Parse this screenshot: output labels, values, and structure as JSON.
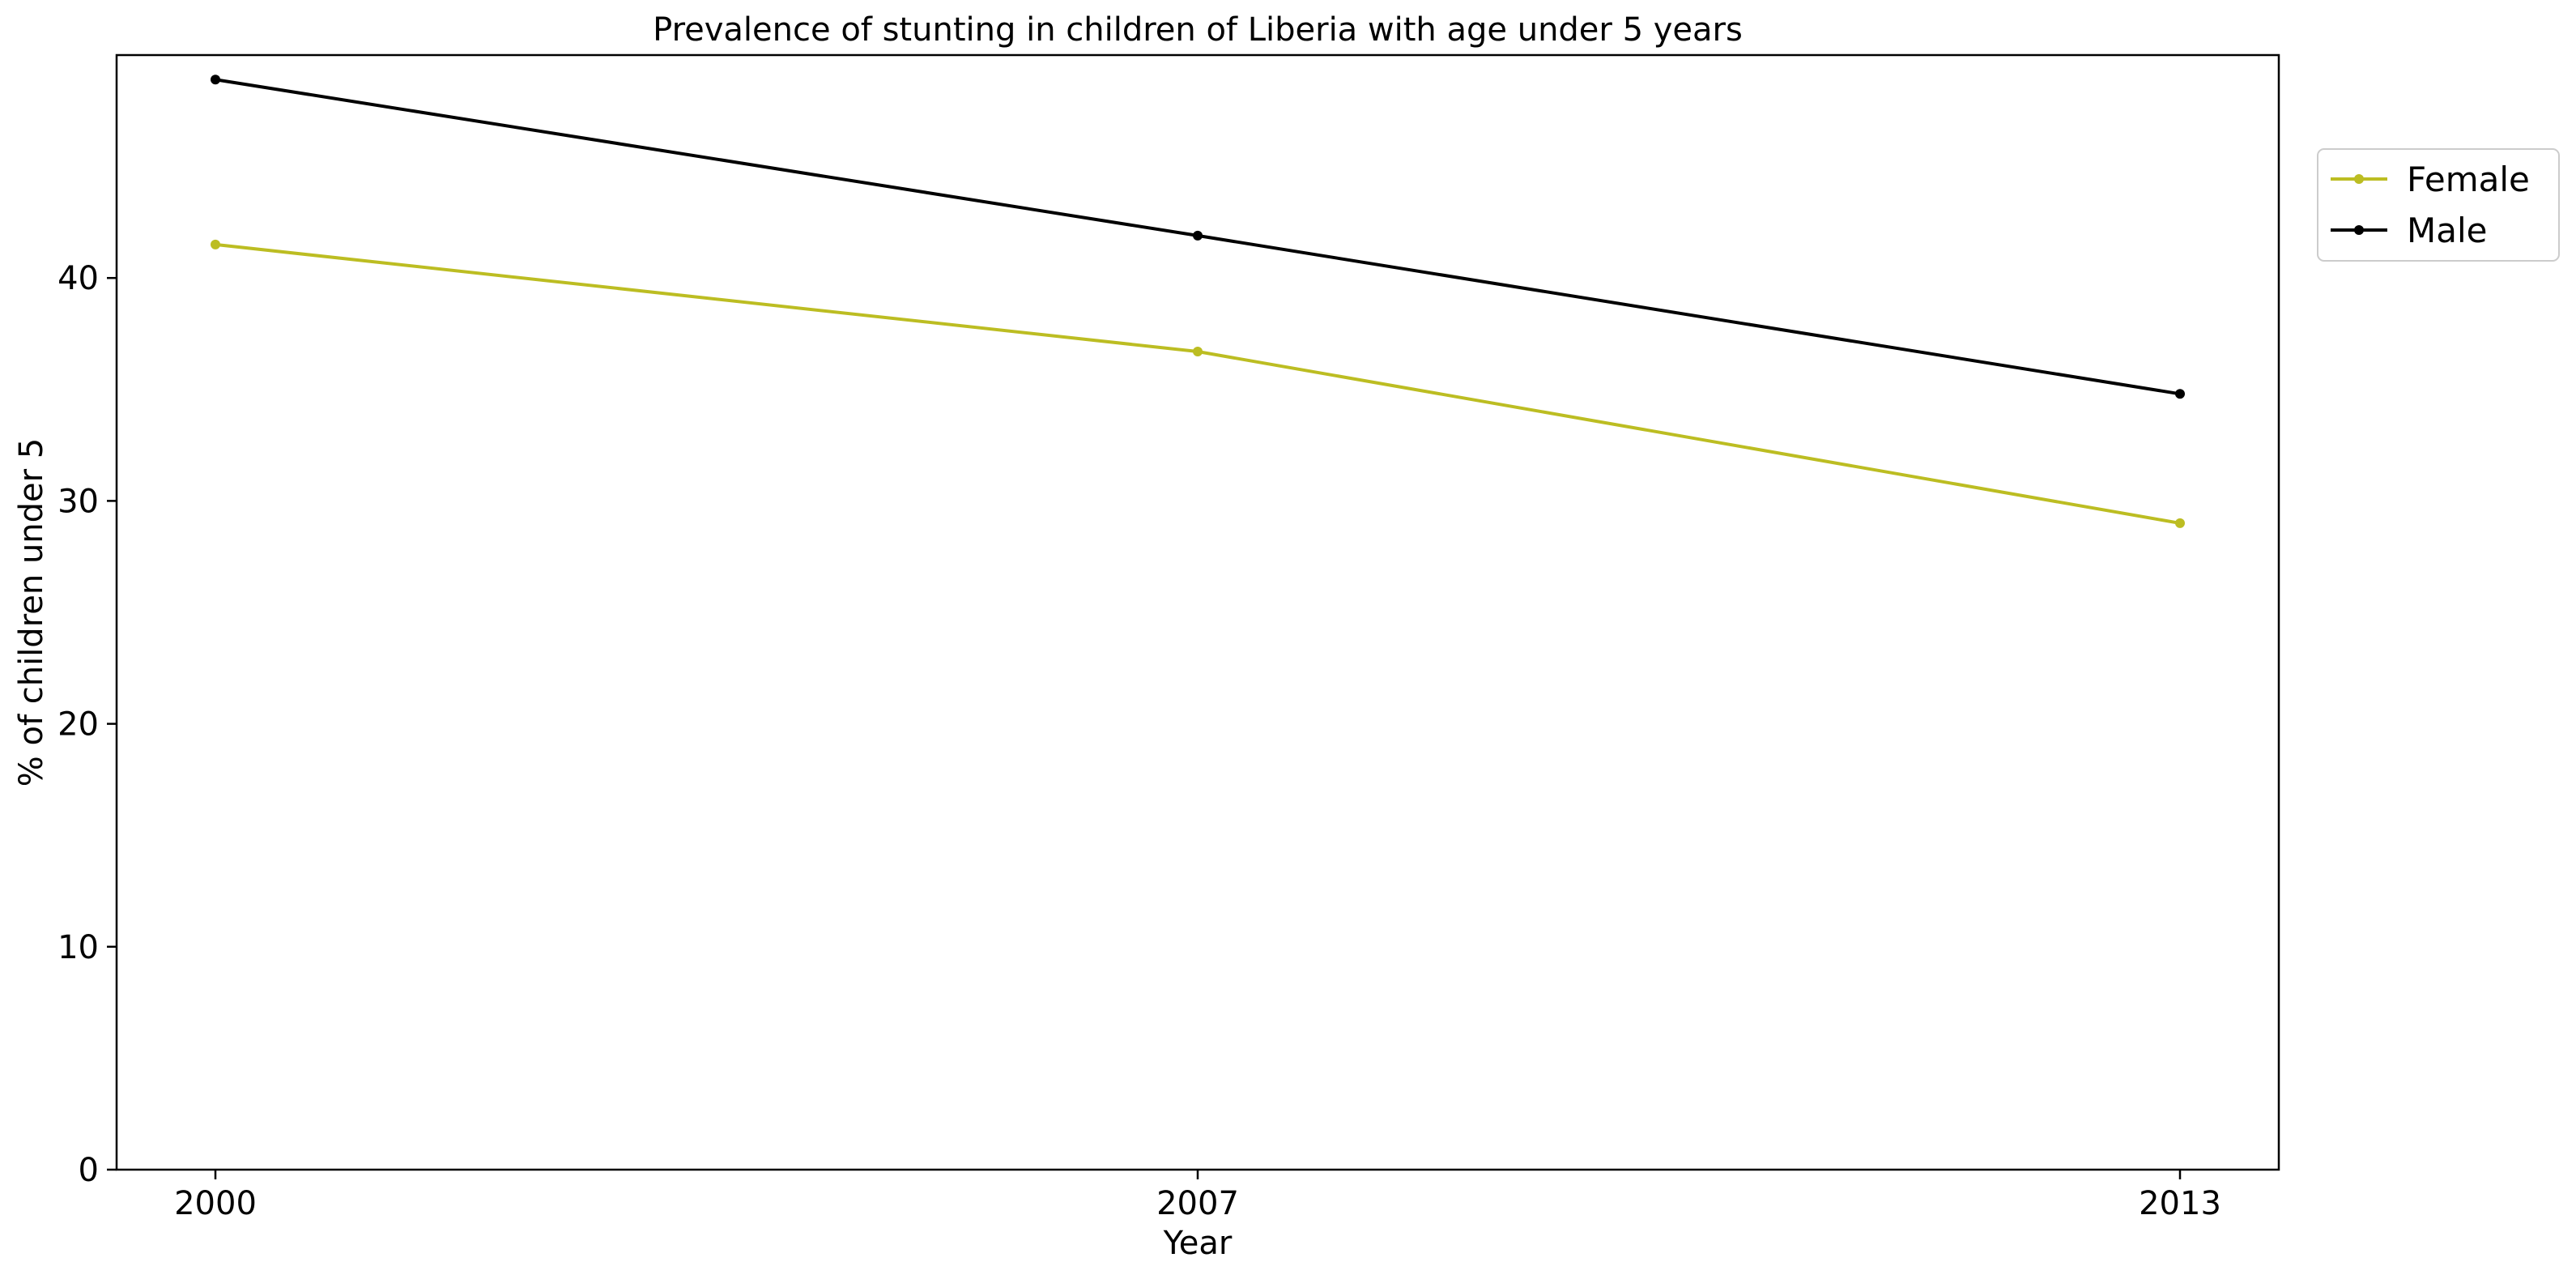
{
  "chart_data": {
    "type": "line",
    "title": "Prevalence of stunting in children of Liberia with age under 5 years",
    "xlabel": "Year",
    "ylabel": "% of children under 5",
    "categories": [
      "2000",
      "2007",
      "2013"
    ],
    "series": [
      {
        "name": "Female",
        "color": "#bcbd22",
        "values": [
          41.5,
          36.7,
          29.0
        ]
      },
      {
        "name": "Male",
        "color": "#000000",
        "values": [
          48.9,
          41.9,
          34.8
        ]
      }
    ],
    "ylim": [
      0,
      50
    ],
    "yticks": [
      0,
      10,
      20,
      30,
      40
    ],
    "grid": false,
    "legend_position": "outside top-right"
  }
}
